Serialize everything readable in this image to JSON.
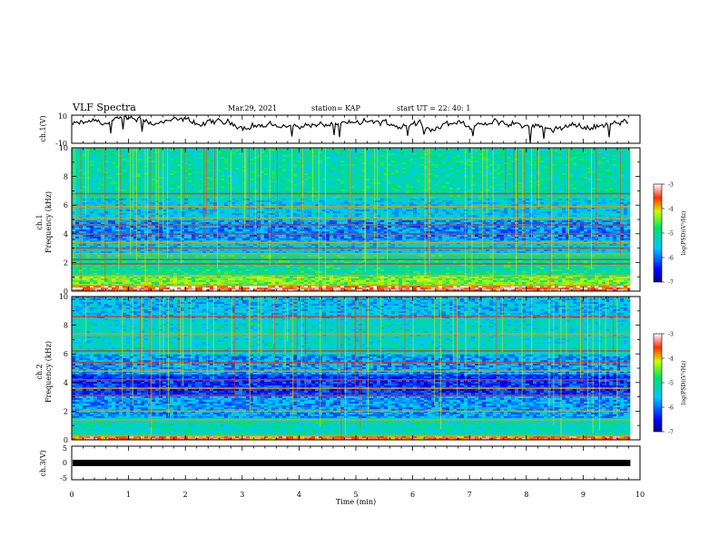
{
  "header": {
    "title": "VLF Spectra",
    "date": "Mar.29, 2021",
    "station": "station= KAP",
    "start_ut": "start  UT  =   22: 40: 1"
  },
  "chart_data": [
    {
      "type": "line",
      "panel": "ch1-waveform",
      "ylabel": "ch.1(V)",
      "ylim": [
        -10,
        10
      ],
      "yticks": [
        "10",
        "-10"
      ],
      "xlim": [
        0,
        10
      ],
      "color": "#000000",
      "approx_level_V": 3
    },
    {
      "type": "heatmap",
      "panel": "ch1-spectrogram",
      "ylabel": "ch.1",
      "ylabel2": "Frequency  (kHz)",
      "ylim": [
        0,
        10
      ],
      "yticks": [
        "0",
        "2",
        "4",
        "6",
        "8",
        "10"
      ],
      "xlim": [
        0,
        9.83
      ],
      "colorbar": {
        "label": "log(PSD)(V²/Hz)",
        "ticks": [
          "-3",
          "-4",
          "-5",
          "-6",
          "-7"
        ],
        "range": [
          -7,
          -3
        ]
      },
      "bands_khz": [
        {
          "from": 0.0,
          "to": 0.35,
          "log_psd": -3.4
        },
        {
          "from": 0.35,
          "to": 1.2,
          "log_psd": -4.4
        },
        {
          "from": 1.2,
          "to": 2.6,
          "log_psd": -5.0
        },
        {
          "from": 2.6,
          "to": 3.5,
          "log_psd": -5.5
        },
        {
          "from": 3.5,
          "to": 5.0,
          "log_psd": -5.9
        },
        {
          "from": 5.0,
          "to": 6.5,
          "log_psd": -5.5
        },
        {
          "from": 6.5,
          "to": 10.0,
          "log_psd": -5.1
        }
      ],
      "lines_khz": [
        0.4,
        1.1,
        1.9,
        2.2,
        2.6,
        3.0,
        3.4,
        4.0,
        4.6,
        5.1,
        5.9,
        6.8
      ]
    },
    {
      "type": "heatmap",
      "panel": "ch2-spectrogram",
      "ylabel": "ch.2",
      "ylabel2": "Frequency  (kHz)",
      "ylim": [
        0,
        10
      ],
      "yticks": [
        "0",
        "2",
        "4",
        "6",
        "8",
        "10"
      ],
      "xlim": [
        0,
        9.83
      ],
      "colorbar": {
        "label": "log(PSD)(V²/Hz)",
        "ticks": [
          "-3",
          "-4",
          "-5",
          "-6",
          "-7"
        ],
        "range": [
          -7,
          -3
        ]
      },
      "bands_khz": [
        {
          "from": 0.0,
          "to": 0.3,
          "log_psd": -3.6
        },
        {
          "from": 0.3,
          "to": 1.5,
          "log_psd": -5.2
        },
        {
          "from": 1.5,
          "to": 3.0,
          "log_psd": -5.8
        },
        {
          "from": 3.0,
          "to": 4.5,
          "log_psd": -6.3
        },
        {
          "from": 4.5,
          "to": 6.0,
          "log_psd": -5.8
        },
        {
          "from": 6.0,
          "to": 8.5,
          "log_psd": -5.3
        },
        {
          "from": 8.5,
          "to": 10.0,
          "log_psd": -5.6
        }
      ],
      "lines_khz": [
        0.3,
        1.4,
        2.0,
        3.1,
        3.6,
        4.2,
        4.8,
        5.4,
        6.2,
        7.4,
        8.6
      ]
    },
    {
      "type": "line",
      "panel": "ch3-waveform",
      "ylabel": "ch.3(V)",
      "ylim": [
        -5,
        5
      ],
      "yticks": [
        "5",
        "0",
        "-5"
      ],
      "xlim": [
        0,
        9.83
      ],
      "color": "#000000",
      "level_V": 0
    }
  ],
  "xaxis": {
    "label": "Time  (min)",
    "ticks": [
      "0",
      "1",
      "2",
      "3",
      "4",
      "5",
      "6",
      "7",
      "8",
      "9",
      "10"
    ],
    "range": [
      0,
      10
    ]
  }
}
